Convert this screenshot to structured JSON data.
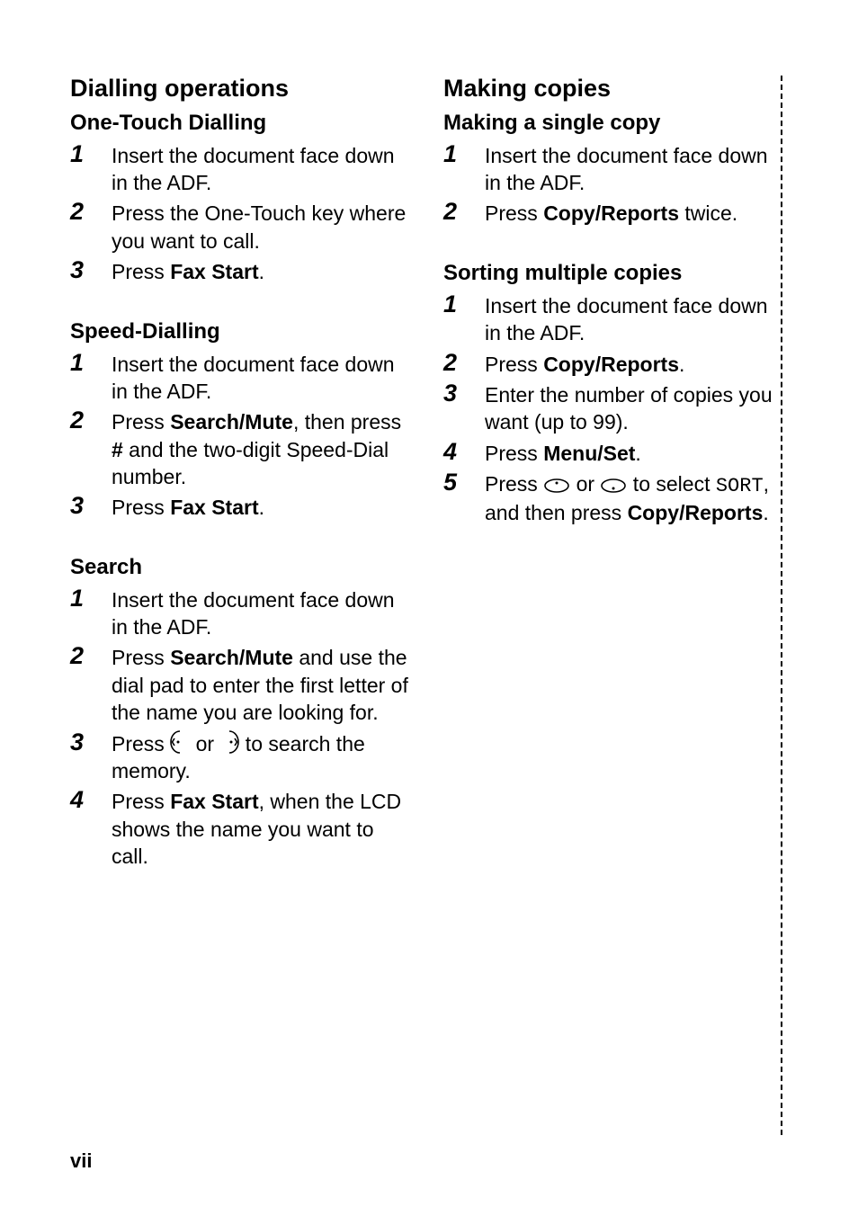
{
  "page_number": "vii",
  "left_column": {
    "heading": "Dialling operations",
    "sections": [
      {
        "title": "One-Touch Dialling",
        "steps": [
          [
            {
              "t": "Insert the document face down in the ADF."
            }
          ],
          [
            {
              "t": "Press the One-Touch key where you want to call."
            }
          ],
          [
            {
              "t": "Press "
            },
            {
              "t": "Fax Start",
              "b": true
            },
            {
              "t": "."
            }
          ]
        ]
      },
      {
        "title": "Speed-Dialling",
        "steps": [
          [
            {
              "t": "Insert the document face down in the ADF."
            }
          ],
          [
            {
              "t": "Press "
            },
            {
              "t": "Search/Mute",
              "b": true
            },
            {
              "t": ", then press "
            },
            {
              "t": "#",
              "b": true
            },
            {
              "t": " and the two-digit Speed-Dial number."
            }
          ],
          [
            {
              "t": "Press "
            },
            {
              "t": "Fax Start",
              "b": true
            },
            {
              "t": "."
            }
          ]
        ]
      },
      {
        "title": "Search",
        "steps": [
          [
            {
              "t": "Insert the document face down in the ADF."
            }
          ],
          [
            {
              "t": "Press "
            },
            {
              "t": "Search/Mute",
              "b": true
            },
            {
              "t": " and use the dial pad to enter the first letter of the name you are looking for."
            }
          ],
          [
            {
              "t": "Press "
            },
            {
              "icon": "left-half"
            },
            {
              "t": " or "
            },
            {
              "icon": "right-half"
            },
            {
              "t": " to search the memory."
            }
          ],
          [
            {
              "t": "Press "
            },
            {
              "t": "Fax Start",
              "b": true
            },
            {
              "t": ", when the LCD shows the name you want to call."
            }
          ]
        ]
      }
    ]
  },
  "right_column": {
    "heading": "Making copies",
    "sections": [
      {
        "title": "Making a single copy",
        "steps": [
          [
            {
              "t": "Insert the document face down in the ADF."
            }
          ],
          [
            {
              "t": "Press "
            },
            {
              "t": "Copy/Reports",
              "b": true
            },
            {
              "t": " twice."
            }
          ]
        ]
      },
      {
        "title": "Sorting multiple copies",
        "steps": [
          [
            {
              "t": "Insert the document face down in the ADF."
            }
          ],
          [
            {
              "t": "Press "
            },
            {
              "t": "Copy/Reports",
              "b": true
            },
            {
              "t": "."
            }
          ],
          [
            {
              "t": "Enter the number of copies you want (up to 99)."
            }
          ],
          [
            {
              "t": "Press "
            },
            {
              "t": "Menu/Set",
              "b": true
            },
            {
              "t": "."
            }
          ],
          [
            {
              "t": "Press "
            },
            {
              "icon": "oval-up"
            },
            {
              "t": " or "
            },
            {
              "icon": "oval-down"
            },
            {
              "t": " to select "
            },
            {
              "t": "SORT",
              "mono": true
            },
            {
              "t": ", and then press "
            },
            {
              "t": "Copy/Reports",
              "b": true
            },
            {
              "t": "."
            }
          ]
        ]
      }
    ]
  },
  "icons": {
    "left-half": "left-half-icon",
    "right-half": "right-half-icon",
    "oval-up": "oval-up-icon",
    "oval-down": "oval-down-icon"
  }
}
